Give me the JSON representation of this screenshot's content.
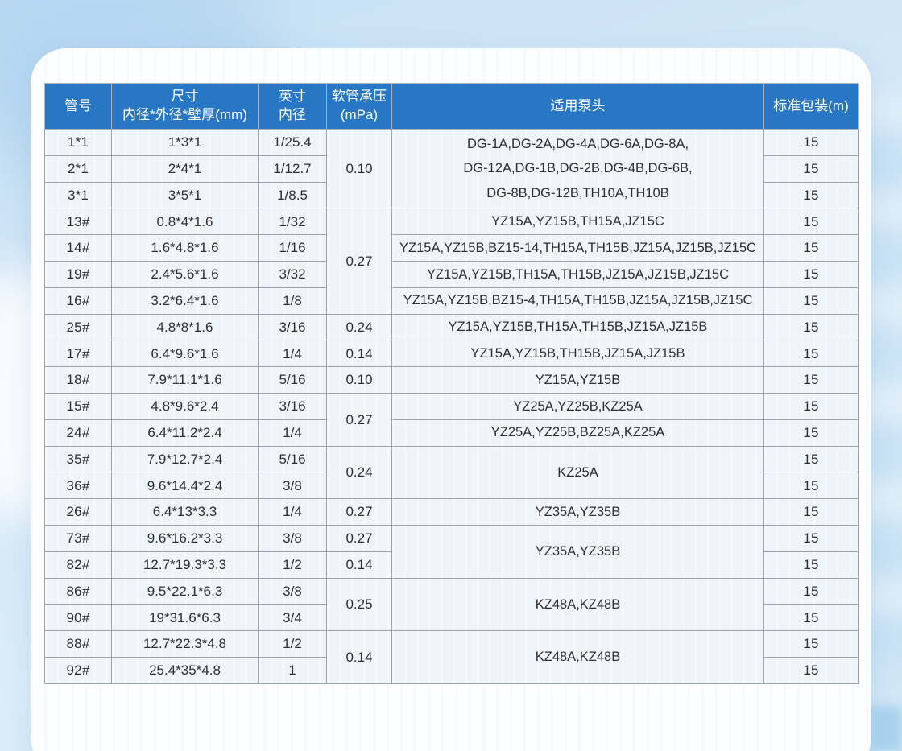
{
  "colors": {
    "header_bg": "#2877c5",
    "header_text": "#ffffff",
    "cell_bg": "#edf4fa",
    "grid_line": "#9ba4ad",
    "cell_text": "#2f2f2f",
    "page_bg": "#cde4f6",
    "panel_bg": "#fcfeff"
  },
  "table": {
    "columns": [
      {
        "id": "tube_no",
        "label": "管号"
      },
      {
        "id": "size_mm",
        "label": "尺寸\n内径*外径*壁厚(mm)"
      },
      {
        "id": "inch_id",
        "label": "英寸\n内径"
      },
      {
        "id": "pressure",
        "label": "软管承压\n(mPa)"
      },
      {
        "id": "pumps",
        "label": "适用泵头"
      },
      {
        "id": "package",
        "label": "标准包装(m)"
      }
    ],
    "rows": [
      {
        "tube_no": "1*1",
        "size_mm": "1*3*1",
        "inch_id": "1/25.4",
        "pressure": {
          "text": "0.10",
          "rowspan": 3
        },
        "pumps": {
          "text": "DG-1A,DG-2A,DG-4A,DG-6A,DG-8A,\nDG-12A,DG-1B,DG-2B,DG-4B,DG-6B,\nDG-8B,DG-12B,TH10A,TH10B",
          "rowspan": 3
        },
        "package": "15"
      },
      {
        "tube_no": "2*1",
        "size_mm": "2*4*1",
        "inch_id": "1/12.7",
        "package": "15"
      },
      {
        "tube_no": "3*1",
        "size_mm": "3*5*1",
        "inch_id": "1/8.5",
        "package": "15"
      },
      {
        "tube_no": "13#",
        "size_mm": "0.8*4*1.6",
        "inch_id": "1/32",
        "pressure": {
          "text": "0.27",
          "rowspan": 4
        },
        "pumps": {
          "text": "YZ15A,YZ15B,TH15A,JZ15C",
          "rowspan": 1
        },
        "package": "15"
      },
      {
        "tube_no": "14#",
        "size_mm": "1.6*4.8*1.6",
        "inch_id": "1/16",
        "pumps": {
          "text": "YZ15A,YZ15B,BZ15-14,TH15A,TH15B,JZ15A,JZ15B,JZ15C",
          "rowspan": 1
        },
        "package": "15"
      },
      {
        "tube_no": "19#",
        "size_mm": "2.4*5.6*1.6",
        "inch_id": "3/32",
        "pumps": {
          "text": "YZ15A,YZ15B,TH15A,TH15B,JZ15A,JZ15B,JZ15C",
          "rowspan": 1
        },
        "package": "15"
      },
      {
        "tube_no": "16#",
        "size_mm": "3.2*6.4*1.6",
        "inch_id": "1/8",
        "pumps": {
          "text": "YZ15A,YZ15B,BZ15-4,TH15A,TH15B,JZ15A,JZ15B,JZ15C",
          "rowspan": 1
        },
        "package": "15"
      },
      {
        "tube_no": "25#",
        "size_mm": "4.8*8*1.6",
        "inch_id": "3/16",
        "pressure": {
          "text": "0.24",
          "rowspan": 1
        },
        "pumps": {
          "text": "YZ15A,YZ15B,TH15A,TH15B,JZ15A,JZ15B",
          "rowspan": 1
        },
        "package": "15"
      },
      {
        "tube_no": "17#",
        "size_mm": "6.4*9.6*1.6",
        "inch_id": "1/4",
        "pressure": {
          "text": "0.14",
          "rowspan": 1
        },
        "pumps": {
          "text": "YZ15A,YZ15B,TH15B,JZ15A,JZ15B",
          "rowspan": 1
        },
        "package": "15"
      },
      {
        "tube_no": "18#",
        "size_mm": "7.9*11.1*1.6",
        "inch_id": "5/16",
        "pressure": {
          "text": "0.10",
          "rowspan": 1
        },
        "pumps": {
          "text": "YZ15A,YZ15B",
          "rowspan": 1
        },
        "package": "15"
      },
      {
        "tube_no": "15#",
        "size_mm": "4.8*9.6*2.4",
        "inch_id": "3/16",
        "pressure": {
          "text": "0.27",
          "rowspan": 2
        },
        "pumps": {
          "text": "YZ25A,YZ25B,KZ25A",
          "rowspan": 1
        },
        "package": "15"
      },
      {
        "tube_no": "24#",
        "size_mm": "6.4*11.2*2.4",
        "inch_id": "1/4",
        "pumps": {
          "text": "YZ25A,YZ25B,BZ25A,KZ25A",
          "rowspan": 1
        },
        "package": "15"
      },
      {
        "tube_no": "35#",
        "size_mm": "7.9*12.7*2.4",
        "inch_id": "5/16",
        "pressure": {
          "text": "0.24",
          "rowspan": 2
        },
        "pumps": {
          "text": "KZ25A",
          "rowspan": 2
        },
        "package": "15"
      },
      {
        "tube_no": "36#",
        "size_mm": "9.6*14.4*2.4",
        "inch_id": "3/8",
        "package": "15"
      },
      {
        "tube_no": "26#",
        "size_mm": "6.4*13*3.3",
        "inch_id": "1/4",
        "pressure": {
          "text": "0.27",
          "rowspan": 1
        },
        "pumps": {
          "text": "YZ35A,YZ35B",
          "rowspan": 1
        },
        "package": "15"
      },
      {
        "tube_no": "73#",
        "size_mm": "9.6*16.2*3.3",
        "inch_id": "3/8",
        "pressure": {
          "text": "0.27",
          "rowspan": 1
        },
        "pumps": {
          "text": "YZ35A,YZ35B",
          "rowspan": 2
        },
        "package": "15"
      },
      {
        "tube_no": "82#",
        "size_mm": "12.7*19.3*3.3",
        "inch_id": "1/2",
        "pressure": {
          "text": "0.14",
          "rowspan": 1
        },
        "package": "15"
      },
      {
        "tube_no": "86#",
        "size_mm": "9.5*22.1*6.3",
        "inch_id": "3/8",
        "pressure": {
          "text": "0.25",
          "rowspan": 2
        },
        "pumps": {
          "text": "KZ48A,KZ48B",
          "rowspan": 2
        },
        "package": "15"
      },
      {
        "tube_no": "90#",
        "size_mm": "19*31.6*6.3",
        "inch_id": "3/4",
        "package": "15"
      },
      {
        "tube_no": "88#",
        "size_mm": "12.7*22.3*4.8",
        "inch_id": "1/2",
        "pressure": {
          "text": "0.14",
          "rowspan": 2
        },
        "pumps": {
          "text": "KZ48A,KZ48B",
          "rowspan": 2
        },
        "package": "15"
      },
      {
        "tube_no": "92#",
        "size_mm": "25.4*35*4.8",
        "inch_id": "1",
        "package": "15"
      }
    ]
  }
}
